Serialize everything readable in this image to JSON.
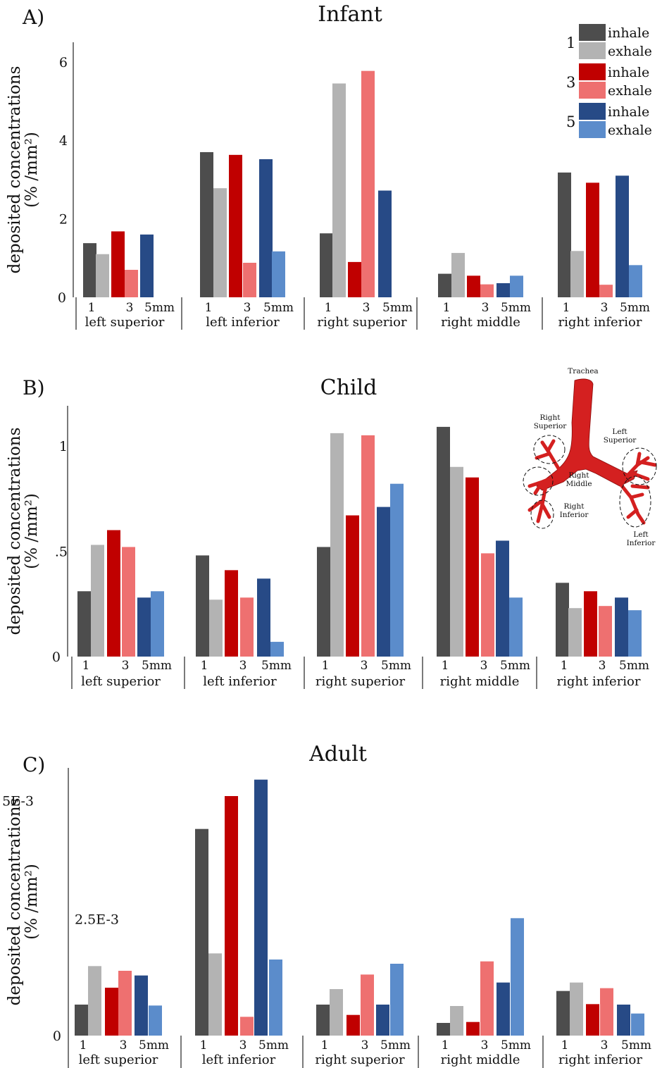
{
  "legend": {
    "groups": [
      {
        "size": "1",
        "entries": [
          {
            "label": "inhale",
            "color": "#4d4d4d"
          },
          {
            "label": "exhale",
            "color": "#b3b3b3"
          }
        ]
      },
      {
        "size": "3",
        "entries": [
          {
            "label": "inhale",
            "color": "#c00000"
          },
          {
            "label": "exhale",
            "color": "#ee7070"
          }
        ]
      },
      {
        "size": "5",
        "entries": [
          {
            "label": "inhale",
            "color": "#274a86"
          },
          {
            "label": "exhale",
            "color": "#5b8ccb"
          }
        ]
      }
    ]
  },
  "inset": {
    "labels": [
      "Trachea",
      "Right Superior",
      "Left Superior",
      "Right Middle",
      "Right Inferior",
      "Left Inferior"
    ],
    "color": "#d42020"
  },
  "chart_data": [
    {
      "type": "bar",
      "panel": "A)",
      "title": "Infant",
      "ylabel": "deposited concentrations",
      "yunit": "(% /mm²)",
      "ylim": [
        0,
        6.5
      ],
      "yticks": [
        {
          "v": 0,
          "label": "0"
        },
        {
          "v": 2,
          "label": "2"
        },
        {
          "v": 4,
          "label": "4"
        },
        {
          "v": 6,
          "label": "6"
        }
      ],
      "categories": [
        "left superior",
        "left inferior",
        "right superior",
        "right middle",
        "right inferior"
      ],
      "size_labels": [
        "1",
        "3",
        "5mm"
      ],
      "series": [
        {
          "size": "1",
          "phase": "inhale",
          "color": "#4d4d4d",
          "values": [
            1.38,
            3.7,
            1.63,
            0.6,
            3.18
          ]
        },
        {
          "size": "1",
          "phase": "exhale",
          "color": "#b3b3b3",
          "values": [
            1.1,
            2.78,
            5.45,
            1.13,
            1.18
          ]
        },
        {
          "size": "3",
          "phase": "inhale",
          "color": "#c00000",
          "values": [
            1.68,
            3.63,
            0.9,
            0.55,
            2.92
          ]
        },
        {
          "size": "3",
          "phase": "exhale",
          "color": "#ee7070",
          "values": [
            0.7,
            0.88,
            5.77,
            0.33,
            0.32
          ]
        },
        {
          "size": "5",
          "phase": "inhale",
          "color": "#274a86",
          "values": [
            1.6,
            3.52,
            2.72,
            0.36,
            3.1
          ]
        },
        {
          "size": "5",
          "phase": "exhale",
          "color": "#5b8ccb",
          "values": [
            0,
            1.17,
            0,
            0.55,
            0.82
          ]
        }
      ]
    },
    {
      "type": "bar",
      "panel": "B)",
      "title": "Child",
      "ylabel": "deposited concentrations",
      "yunit": "(% /mm²)",
      "ylim": [
        0,
        1.19
      ],
      "yticks": [
        {
          "v": 0,
          "label": "0"
        },
        {
          "v": 0.5,
          "label": ".5"
        },
        {
          "v": 1,
          "label": "1"
        }
      ],
      "categories": [
        "left superior",
        "left inferior",
        "right superior",
        "right middle",
        "right inferior"
      ],
      "size_labels": [
        "1",
        "3",
        "5mm"
      ],
      "series": [
        {
          "size": "1",
          "phase": "inhale",
          "color": "#4d4d4d",
          "values": [
            0.31,
            0.48,
            0.52,
            1.09,
            0.35
          ]
        },
        {
          "size": "1",
          "phase": "exhale",
          "color": "#b3b3b3",
          "values": [
            0.53,
            0.27,
            1.06,
            0.9,
            0.23
          ]
        },
        {
          "size": "3",
          "phase": "inhale",
          "color": "#c00000",
          "values": [
            0.6,
            0.41,
            0.67,
            0.85,
            0.31
          ]
        },
        {
          "size": "3",
          "phase": "exhale",
          "color": "#ee7070",
          "values": [
            0.52,
            0.28,
            1.05,
            0.49,
            0.24
          ]
        },
        {
          "size": "5",
          "phase": "inhale",
          "color": "#274a86",
          "values": [
            0.28,
            0.37,
            0.71,
            0.55,
            0.28
          ]
        },
        {
          "size": "5",
          "phase": "exhale",
          "color": "#5b8ccb",
          "values": [
            0.31,
            0.07,
            0.82,
            0.28,
            0.22
          ]
        }
      ]
    },
    {
      "type": "bar",
      "panel": "C)",
      "title": "Adult",
      "ylabel": "deposited concentrations",
      "yunit": "(% /mm²)",
      "ylim": [
        0,
        0.0057
      ],
      "yticks": [
        {
          "v": 0,
          "label": "0"
        },
        {
          "v": 0.0025,
          "label": "2.5E-3"
        },
        {
          "v": 0.005,
          "label": "5E-3"
        }
      ],
      "categories": [
        "left superior",
        "left inferior",
        "right superior",
        "right middle",
        "right inferior"
      ],
      "size_labels": [
        "1",
        "3",
        "5mm"
      ],
      "series": [
        {
          "size": "1",
          "phase": "inhale",
          "color": "#4d4d4d",
          "values": [
            0.00066,
            0.0044,
            0.00066,
            0.00027,
            0.00095
          ]
        },
        {
          "size": "1",
          "phase": "exhale",
          "color": "#b3b3b3",
          "values": [
            0.00148,
            0.00175,
            0.00099,
            0.00063,
            0.00113
          ]
        },
        {
          "size": "3",
          "phase": "inhale",
          "color": "#c00000",
          "values": [
            0.00102,
            0.0051,
            0.00044,
            0.00029,
            0.00067
          ]
        },
        {
          "size": "3",
          "phase": "exhale",
          "color": "#ee7070",
          "values": [
            0.00138,
            0.0004,
            0.0013,
            0.00158,
            0.00101
          ]
        },
        {
          "size": "5",
          "phase": "inhale",
          "color": "#274a86",
          "values": [
            0.00128,
            0.00545,
            0.00066,
            0.00113,
            0.00066
          ]
        },
        {
          "size": "5",
          "phase": "exhale",
          "color": "#5b8ccb",
          "values": [
            0.00064,
            0.00162,
            0.00153,
            0.0025,
            0.00047
          ]
        }
      ]
    }
  ]
}
